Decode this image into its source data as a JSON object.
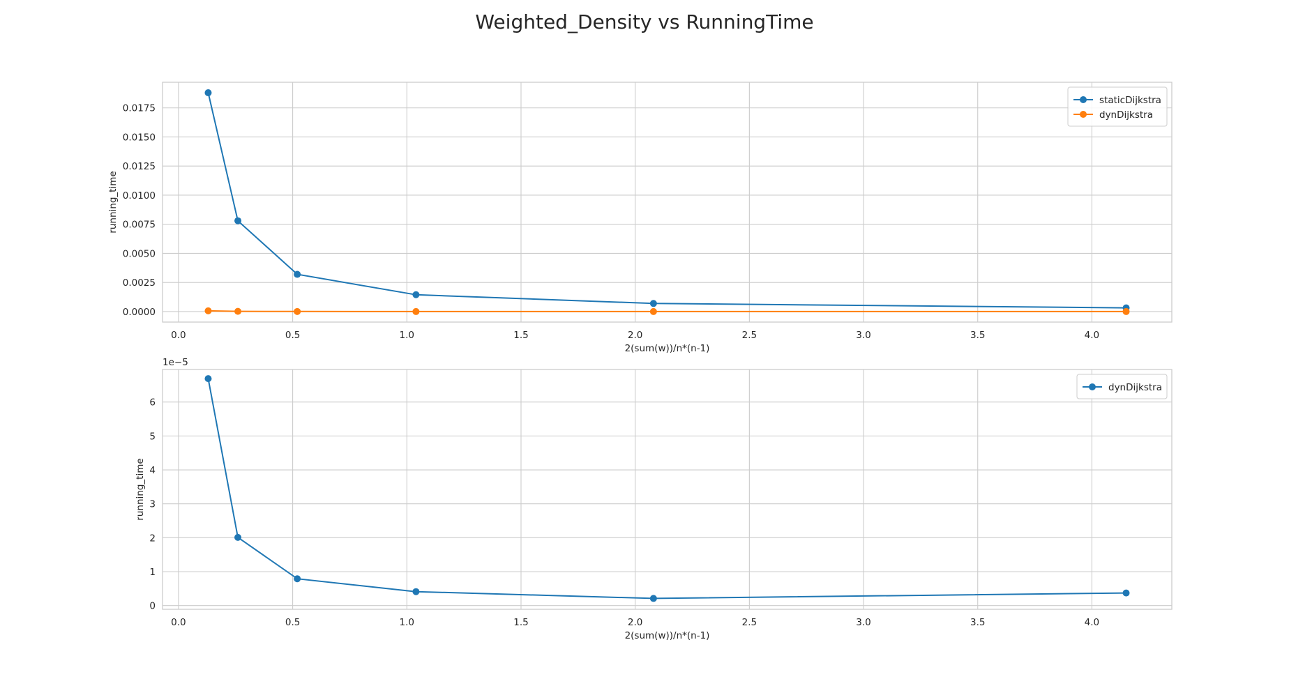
{
  "figure": {
    "title": "Weighted_Density vs RunningTime"
  },
  "chart_data": [
    {
      "type": "line",
      "xlabel": "2(sum(w))/n*(n-1)",
      "ylabel": "running_time",
      "offset_label": "",
      "xlim": [
        -0.07,
        4.35
      ],
      "ylim": [
        -0.0009,
        0.0197
      ],
      "x_ticks": [
        {
          "value": 0.0,
          "label": "0.0"
        },
        {
          "value": 0.5,
          "label": "0.5"
        },
        {
          "value": 1.0,
          "label": "1.0"
        },
        {
          "value": 1.5,
          "label": "1.5"
        },
        {
          "value": 2.0,
          "label": "2.0"
        },
        {
          "value": 2.5,
          "label": "2.5"
        },
        {
          "value": 3.0,
          "label": "3.0"
        },
        {
          "value": 3.5,
          "label": "3.5"
        },
        {
          "value": 4.0,
          "label": "4.0"
        }
      ],
      "y_ticks": [
        {
          "value": 0.0,
          "label": "0.0000"
        },
        {
          "value": 0.0025,
          "label": "0.0025"
        },
        {
          "value": 0.005,
          "label": "0.0050"
        },
        {
          "value": 0.0075,
          "label": "0.0075"
        },
        {
          "value": 0.01,
          "label": "0.0100"
        },
        {
          "value": 0.0125,
          "label": "0.0125"
        },
        {
          "value": 0.015,
          "label": "0.0150"
        },
        {
          "value": 0.0175,
          "label": "0.0175"
        }
      ],
      "grid": true,
      "legend_position": "top-right",
      "series": [
        {
          "name": "staticDijkstra",
          "color": "#1f77b4",
          "x": [
            0.13,
            0.26,
            0.52,
            1.04,
            2.08,
            4.15
          ],
          "y": [
            0.0188,
            0.0078,
            0.0032,
            0.00145,
            0.0007,
            0.00032
          ]
        },
        {
          "name": "dynDijkstra",
          "color": "#ff7f0e",
          "x": [
            0.13,
            0.26,
            0.52,
            1.04,
            2.08,
            4.15
          ],
          "y": [
            6.7e-05,
            2e-05,
            8e-06,
            4e-06,
            2e-06,
            3.6e-06
          ]
        }
      ]
    },
    {
      "type": "line",
      "xlabel": "2(sum(w))/n*(n-1)",
      "ylabel": "running_time",
      "offset_label": "1e−5",
      "y_scale": 1e-05,
      "xlim": [
        -0.07,
        4.35
      ],
      "ylim": [
        -1.1e-06,
        6.96e-05
      ],
      "x_ticks": [
        {
          "value": 0.0,
          "label": "0.0"
        },
        {
          "value": 0.5,
          "label": "0.5"
        },
        {
          "value": 1.0,
          "label": "1.0"
        },
        {
          "value": 1.5,
          "label": "1.5"
        },
        {
          "value": 2.0,
          "label": "2.0"
        },
        {
          "value": 2.5,
          "label": "2.5"
        },
        {
          "value": 3.0,
          "label": "3.0"
        },
        {
          "value": 3.5,
          "label": "3.5"
        },
        {
          "value": 4.0,
          "label": "4.0"
        }
      ],
      "y_ticks": [
        {
          "value": 0.0,
          "label": "0"
        },
        {
          "value": 1e-05,
          "label": "1"
        },
        {
          "value": 2e-05,
          "label": "2"
        },
        {
          "value": 3e-05,
          "label": "3"
        },
        {
          "value": 4e-05,
          "label": "4"
        },
        {
          "value": 5e-05,
          "label": "5"
        },
        {
          "value": 6e-05,
          "label": "6"
        }
      ],
      "grid": true,
      "legend_position": "top-right",
      "series": [
        {
          "name": "dynDijkstra",
          "color": "#1f77b4",
          "x": [
            0.13,
            0.26,
            0.52,
            1.04,
            2.08,
            4.15
          ],
          "y": [
            6.69e-05,
            2.01e-05,
            7.9e-06,
            4.1e-06,
            2.1e-06,
            3.7e-06
          ]
        }
      ]
    }
  ]
}
